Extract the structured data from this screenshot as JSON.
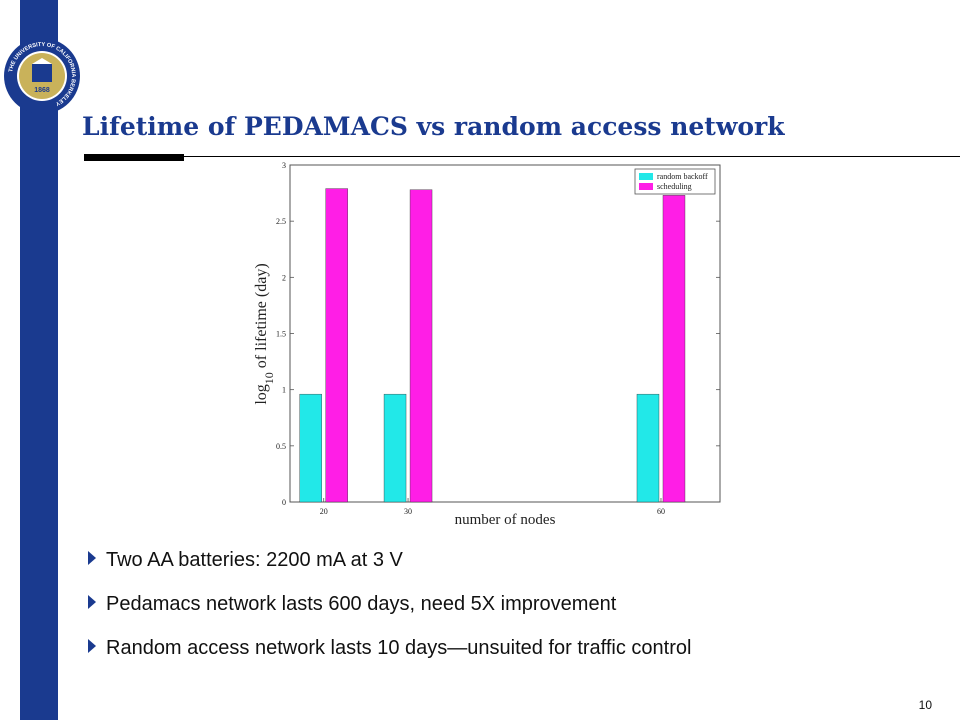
{
  "slide": {
    "title": "Lifetime of PEDAMACS vs random access network",
    "page_number": "10",
    "bullets": [
      "Two AA batteries: 2200 mA at 3 V",
      "Pedamacs network lasts 600 days, need 5X improvement",
      "Random access network lasts 10 days—unsuited for traffic control"
    ],
    "colors": {
      "accent": "#1a3a8f"
    },
    "logo": {
      "icon": "university-seal-icon",
      "text": "THE UNIVERSITY OF CALIFORNIA BERKELEY",
      "year": "1868"
    }
  },
  "chart_data": {
    "type": "bar",
    "categories": [
      "20",
      "30",
      "60"
    ],
    "x": [
      20,
      30,
      60
    ],
    "xlim": [
      16,
      67
    ],
    "ylim": [
      0,
      3
    ],
    "yticks": [
      "0",
      "0.5",
      "1",
      "1.5",
      "2",
      "2.5",
      "3"
    ],
    "ylabel_base": "log",
    "ylabel_sub": "10",
    "ylabel_rest": " of lifetime (day)",
    "xlabel": "number of nodes",
    "legend_position": "top-right",
    "series": [
      {
        "name": "random backoff",
        "color": "#22e8e8",
        "values": [
          0.96,
          0.96,
          0.96
        ]
      },
      {
        "name": "scheduling",
        "color": "#ff1ee6",
        "values": [
          2.79,
          2.78,
          2.73
        ]
      }
    ]
  }
}
